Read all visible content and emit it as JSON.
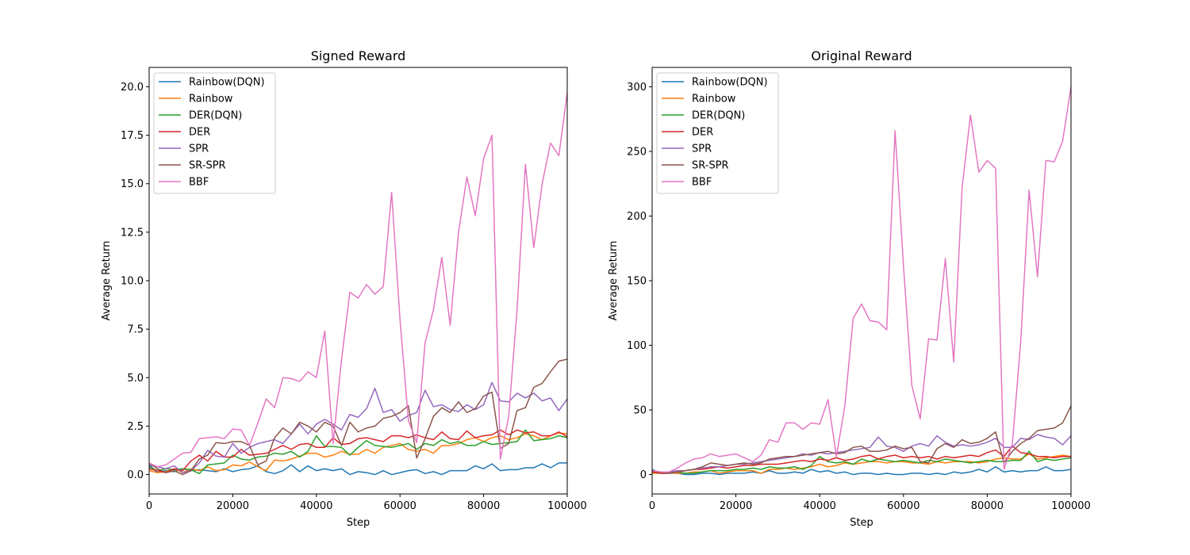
{
  "chart_data": [
    {
      "type": "line",
      "title": "Signed Reward",
      "xlabel": "Step",
      "ylabel": "Average Return",
      "xlim": [
        0,
        100000
      ],
      "ylim": [
        -1.0,
        21.0
      ],
      "xticks": [
        0,
        20000,
        40000,
        60000,
        80000,
        100000
      ],
      "xtick_labels": [
        "0",
        "20000",
        "40000",
        "60000",
        "80000",
        "100000"
      ],
      "yticks": [
        0.0,
        2.5,
        5.0,
        7.5,
        10.0,
        12.5,
        15.0,
        17.5,
        20.0
      ],
      "ytick_labels": [
        "0.0",
        "2.5",
        "5.0",
        "7.5",
        "10.0",
        "12.5",
        "15.0",
        "17.5",
        "20.0"
      ],
      "grid": false,
      "legend": "upper-left",
      "x": [
        0,
        2000,
        4000,
        6000,
        8000,
        10000,
        12000,
        14000,
        16000,
        18000,
        20000,
        22000,
        24000,
        26000,
        28000,
        30000,
        32000,
        34000,
        36000,
        38000,
        40000,
        42000,
        44000,
        46000,
        48000,
        50000,
        52000,
        54000,
        56000,
        58000,
        60000,
        62000,
        64000,
        66000,
        68000,
        70000,
        72000,
        74000,
        76000,
        78000,
        80000,
        82000,
        84000,
        86000,
        88000,
        90000,
        92000,
        94000,
        96000,
        98000,
        100000
      ],
      "series": [
        {
          "name": "Rainbow(DQN)",
          "color": "#1f77b4",
          "values": [
            0.5,
            0.1,
            0.2,
            0.15,
            0.3,
            0.2,
            0.25,
            0.2,
            0.15,
            0.3,
            0.15,
            0.25,
            0.3,
            0.45,
            0.15,
            0.05,
            0.2,
            0.5,
            0.15,
            0.45,
            0.2,
            0.3,
            0.2,
            0.3,
            0.0,
            0.15,
            0.1,
            0.0,
            0.2,
            0.0,
            0.1,
            0.2,
            0.25,
            0.05,
            0.15,
            0.0,
            0.2,
            0.2,
            0.2,
            0.45,
            0.3,
            0.55,
            0.2,
            0.25,
            0.25,
            0.35,
            0.35,
            0.55,
            0.35,
            0.6,
            0.6
          ]
        },
        {
          "name": "Rainbow",
          "color": "#ff7f0e",
          "values": [
            0.2,
            0.1,
            0.15,
            0.3,
            0.1,
            0.3,
            0.2,
            0.4,
            0.2,
            0.25,
            0.5,
            0.45,
            0.65,
            0.4,
            0.2,
            0.75,
            0.7,
            0.8,
            0.95,
            1.1,
            1.1,
            0.9,
            1.0,
            1.2,
            1.05,
            1.05,
            1.3,
            1.1,
            1.4,
            1.5,
            1.6,
            1.3,
            1.2,
            1.3,
            1.1,
            1.5,
            1.5,
            1.6,
            1.8,
            1.9,
            1.7,
            1.9,
            2.0,
            1.8,
            1.9,
            2.1,
            2.0,
            1.8,
            2.0,
            2.15,
            2.1
          ]
        },
        {
          "name": "DER(DQN)",
          "color": "#2ca02c",
          "values": [
            0.4,
            0.2,
            0.3,
            0.25,
            0.3,
            0.25,
            0.05,
            0.5,
            0.55,
            0.6,
            1.0,
            0.8,
            0.75,
            0.9,
            0.95,
            1.1,
            1.05,
            1.2,
            0.9,
            1.2,
            2.0,
            1.45,
            1.45,
            1.4,
            1.0,
            1.4,
            1.75,
            1.5,
            1.45,
            1.4,
            1.5,
            1.6,
            1.3,
            1.6,
            1.5,
            1.8,
            1.6,
            1.7,
            1.5,
            1.5,
            1.7,
            1.55,
            1.6,
            1.65,
            1.7,
            2.3,
            1.75,
            1.8,
            1.85,
            2.0,
            1.9
          ]
        },
        {
          "name": "DER",
          "color": "#d62728",
          "values": [
            0.3,
            0.2,
            0.1,
            0.3,
            0.2,
            0.7,
            1.0,
            0.7,
            1.2,
            0.9,
            0.9,
            1.3,
            1.0,
            1.05,
            1.1,
            1.3,
            1.5,
            1.3,
            1.55,
            1.6,
            1.4,
            1.4,
            1.9,
            1.55,
            1.6,
            1.85,
            1.9,
            1.8,
            1.7,
            2.0,
            2.0,
            1.9,
            2.05,
            1.9,
            1.8,
            2.2,
            1.85,
            1.8,
            2.25,
            1.9,
            2.0,
            2.05,
            2.3,
            2.05,
            2.3,
            2.15,
            2.2,
            2.0,
            2.0,
            2.2,
            1.95
          ]
        },
        {
          "name": "SPR",
          "color": "#9467bd",
          "values": [
            0.5,
            0.4,
            0.3,
            0.45,
            0.1,
            0.2,
            0.6,
            1.25,
            0.95,
            0.9,
            1.6,
            1.1,
            1.4,
            1.6,
            1.7,
            1.8,
            1.6,
            2.1,
            2.6,
            2.1,
            2.6,
            2.85,
            2.6,
            2.3,
            3.1,
            2.95,
            3.4,
            4.45,
            3.2,
            3.35,
            2.75,
            3.05,
            3.2,
            4.35,
            3.5,
            3.6,
            3.35,
            3.25,
            3.6,
            3.35,
            3.6,
            4.75,
            3.8,
            3.75,
            4.2,
            3.95,
            4.2,
            3.8,
            3.95,
            3.3,
            3.9
          ]
        },
        {
          "name": "SR-SPR",
          "color": "#8c564b",
          "values": [
            0.6,
            0.3,
            0.1,
            0.2,
            0.0,
            0.2,
            0.8,
            1.0,
            1.65,
            1.6,
            1.7,
            1.7,
            1.5,
            0.5,
            0.7,
            1.9,
            2.4,
            2.1,
            2.7,
            2.5,
            2.2,
            2.7,
            2.5,
            1.5,
            2.7,
            2.2,
            2.4,
            2.5,
            2.9,
            3.0,
            3.2,
            3.55,
            0.85,
            1.85,
            3.0,
            3.45,
            3.2,
            3.75,
            3.2,
            3.4,
            4.05,
            4.25,
            1.35,
            1.6,
            3.3,
            3.45,
            4.5,
            4.7,
            5.3,
            5.85,
            5.95
          ]
        },
        {
          "name": "BBF",
          "color": "#e377c2",
          "values": [
            0.6,
            0.4,
            0.5,
            0.8,
            1.1,
            1.15,
            1.85,
            1.9,
            1.95,
            1.85,
            2.35,
            2.3,
            1.5,
            2.65,
            3.9,
            3.45,
            5.0,
            4.95,
            4.8,
            5.3,
            5.0,
            7.4,
            1.6,
            5.9,
            9.4,
            9.1,
            9.8,
            9.3,
            9.7,
            14.55,
            8.0,
            2.8,
            1.65,
            6.8,
            8.5,
            11.2,
            7.7,
            12.5,
            15.35,
            13.35,
            16.3,
            17.5,
            0.8,
            3.0,
            8.5,
            16.0,
            11.7,
            15.0,
            17.1,
            16.45,
            19.7
          ]
        }
      ]
    },
    {
      "type": "line",
      "title": "Original Reward",
      "xlabel": "Step",
      "ylabel": "Average Return",
      "xlim": [
        0,
        100000
      ],
      "ylim": [
        -15,
        315
      ],
      "xticks": [
        0,
        20000,
        40000,
        60000,
        80000,
        100000
      ],
      "xtick_labels": [
        "0",
        "20000",
        "40000",
        "60000",
        "80000",
        "100000"
      ],
      "yticks": [
        0,
        50,
        100,
        150,
        200,
        250,
        300
      ],
      "ytick_labels": [
        "0",
        "50",
        "100",
        "150",
        "200",
        "250",
        "300"
      ],
      "grid": false,
      "legend": "upper-left",
      "x": [
        0,
        2000,
        4000,
        6000,
        8000,
        10000,
        12000,
        14000,
        16000,
        18000,
        20000,
        22000,
        24000,
        26000,
        28000,
        30000,
        32000,
        34000,
        36000,
        38000,
        40000,
        42000,
        44000,
        46000,
        48000,
        50000,
        52000,
        54000,
        56000,
        58000,
        60000,
        62000,
        64000,
        66000,
        68000,
        70000,
        72000,
        74000,
        76000,
        78000,
        80000,
        82000,
        84000,
        86000,
        88000,
        90000,
        92000,
        94000,
        96000,
        98000,
        100000
      ],
      "series": [
        {
          "name": "Rainbow(DQN)",
          "color": "#1f77b4",
          "values": [
            4,
            1,
            1,
            1,
            0,
            0,
            1,
            1,
            0,
            1,
            1,
            1,
            2,
            1,
            3,
            1,
            1,
            2,
            1,
            4,
            2,
            3,
            1,
            2,
            0,
            1,
            1,
            0,
            1,
            0,
            0,
            1,
            1,
            0,
            1,
            0,
            2,
            1,
            2,
            4,
            2,
            6,
            2,
            3,
            2,
            3,
            3,
            6,
            3,
            3,
            4
          ]
        },
        {
          "name": "Rainbow",
          "color": "#ff7f0e",
          "values": [
            1,
            1,
            1,
            1,
            1,
            2,
            2,
            3,
            1,
            2,
            3,
            3,
            3,
            1,
            4,
            4,
            5,
            4,
            5,
            6,
            8,
            6,
            7,
            9,
            8,
            9,
            10,
            10,
            9,
            10,
            10,
            9,
            9,
            8,
            10,
            9,
            10,
            10,
            10,
            9,
            10,
            12,
            13,
            12,
            12,
            16,
            12,
            13,
            14,
            15,
            14
          ]
        },
        {
          "name": "DER(DQN)",
          "color": "#2ca02c",
          "values": [
            2,
            1,
            1,
            2,
            1,
            1,
            2,
            3,
            3,
            3,
            4,
            4,
            5,
            4,
            6,
            5,
            5,
            6,
            4,
            7,
            14,
            10,
            9,
            10,
            8,
            12,
            10,
            12,
            11,
            10,
            11,
            10,
            9,
            11,
            10,
            12,
            11,
            10,
            9,
            10,
            11,
            10,
            10,
            11,
            11,
            18,
            10,
            12,
            11,
            12,
            13
          ]
        },
        {
          "name": "DER",
          "color": "#d62728",
          "values": [
            2,
            1,
            1,
            2,
            3,
            4,
            4,
            5,
            6,
            5,
            6,
            7,
            7,
            8,
            8,
            8,
            9,
            10,
            11,
            10,
            12,
            11,
            13,
            11,
            12,
            14,
            15,
            12,
            14,
            15,
            13,
            14,
            13,
            14,
            12,
            14,
            13,
            14,
            15,
            14,
            17,
            19,
            14,
            22,
            17,
            16,
            14,
            14,
            13,
            14,
            14
          ]
        },
        {
          "name": "SPR",
          "color": "#9467bd",
          "values": [
            3,
            2,
            2,
            3,
            3,
            4,
            5,
            6,
            6,
            7,
            8,
            8,
            9,
            10,
            11,
            12,
            13,
            14,
            16,
            15,
            17,
            16,
            17,
            18,
            19,
            20,
            21,
            29,
            22,
            21,
            18,
            22,
            24,
            22,
            30,
            25,
            22,
            23,
            22,
            23,
            25,
            28,
            21,
            21,
            28,
            27,
            31,
            29,
            28,
            23,
            30
          ]
        },
        {
          "name": "SR-SPR",
          "color": "#8c564b",
          "values": [
            3,
            2,
            1,
            2,
            3,
            4,
            6,
            9,
            8,
            7,
            8,
            9,
            8,
            9,
            12,
            13,
            14,
            14,
            15,
            16,
            17,
            18,
            16,
            17,
            21,
            22,
            18,
            18,
            19,
            22,
            20,
            21,
            10,
            9,
            20,
            24,
            21,
            27,
            24,
            25,
            28,
            33,
            9,
            18,
            24,
            28,
            34,
            35,
            36,
            40,
            53
          ]
        },
        {
          "name": "BBF",
          "color": "#e377c2",
          "values": [
            3,
            2,
            2,
            5,
            9,
            12,
            13,
            16,
            14,
            15,
            16,
            13,
            10,
            15,
            27,
            25,
            40,
            40,
            35,
            40,
            39,
            58,
            14,
            53,
            121,
            132,
            119,
            118,
            112,
            266,
            162,
            69,
            43,
            105,
            104,
            167,
            87,
            222,
            278,
            234,
            243,
            237,
            4,
            24,
            103,
            220,
            153,
            243,
            242,
            258,
            300
          ]
        }
      ]
    }
  ]
}
